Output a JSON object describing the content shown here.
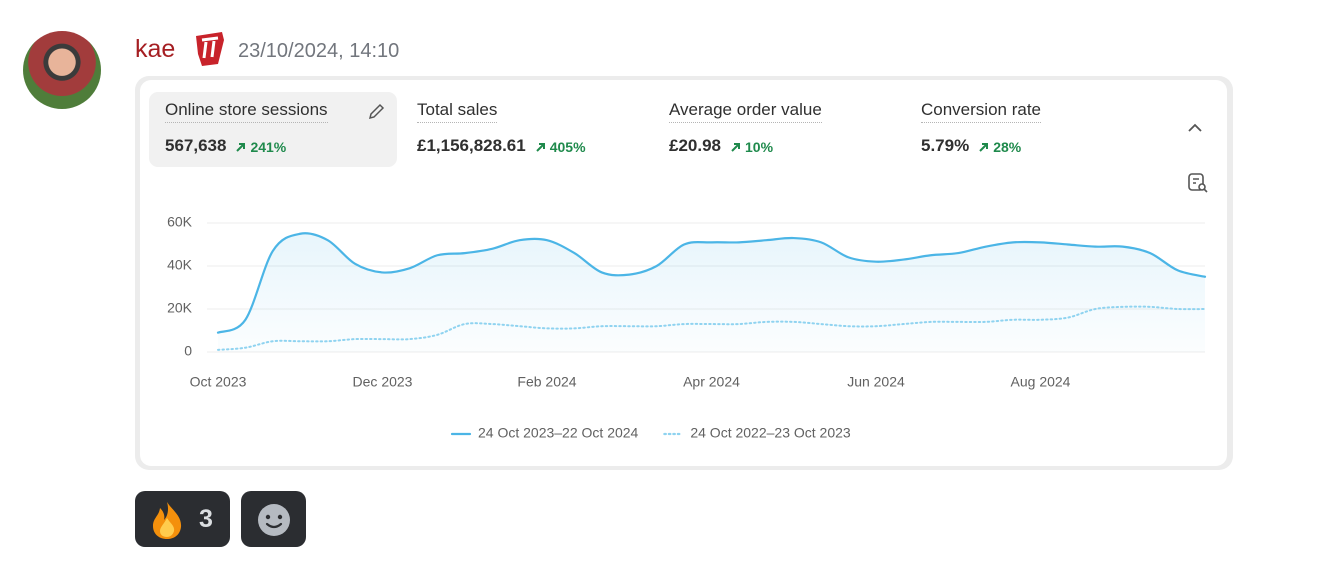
{
  "message": {
    "author": "kae",
    "timestamp": "23/10/2024, 14:10"
  },
  "metrics": [
    {
      "label": "Online store sessions",
      "value": "567,638",
      "change": "241%"
    },
    {
      "label": "Total sales",
      "value": "£1,156,828.61",
      "change": "405%"
    },
    {
      "label": "Average order value",
      "value": "£20.98",
      "change": "10%"
    },
    {
      "label": "Conversion rate",
      "value": "5.79%",
      "change": "28%"
    }
  ],
  "chart_data": {
    "type": "line",
    "categories": [
      "Oct 2023",
      null,
      null,
      null,
      null,
      null,
      "Dec 2023",
      null,
      null,
      null,
      null,
      null,
      "Feb 2024",
      null,
      null,
      null,
      null,
      null,
      "Apr 2024",
      null,
      null,
      null,
      null,
      null,
      "Jun 2024",
      null,
      null,
      null,
      null,
      null,
      "Aug 2024",
      null,
      null,
      null,
      null,
      null,
      null
    ],
    "series": [
      {
        "name": "24 Oct 2023–22 Oct 2024",
        "color": "#4bb5e6",
        "dash": "solid",
        "values": [
          9000,
          15000,
          47000,
          55000,
          52000,
          41000,
          37000,
          39000,
          45000,
          46000,
          48000,
          52000,
          52000,
          46000,
          37000,
          36000,
          40000,
          50000,
          51000,
          51000,
          52000,
          53000,
          51000,
          44000,
          42000,
          43000,
          45000,
          46000,
          49000,
          51000,
          51000,
          50000,
          49000,
          49000,
          46000,
          38000,
          35000
        ]
      },
      {
        "name": "24 Oct 2022–23 Oct 2023",
        "color": "#8fd3f0",
        "dash": "dotted",
        "values": [
          1000,
          2000,
          5000,
          5000,
          5000,
          6000,
          6000,
          6000,
          8000,
          13000,
          13000,
          12000,
          11000,
          11000,
          12000,
          12000,
          12000,
          13000,
          13000,
          13000,
          14000,
          14000,
          13000,
          12000,
          12000,
          13000,
          14000,
          14000,
          14000,
          15000,
          15000,
          16000,
          20000,
          21000,
          21000,
          20000,
          20000
        ]
      }
    ],
    "ylim": [
      0,
      60000
    ],
    "yticks": [
      {
        "value": 0,
        "label": "0"
      },
      {
        "value": 20000,
        "label": "20K"
      },
      {
        "value": 40000,
        "label": "40K"
      },
      {
        "value": 60000,
        "label": "60K"
      }
    ],
    "grid": true
  },
  "reactions": {
    "count": "3"
  }
}
